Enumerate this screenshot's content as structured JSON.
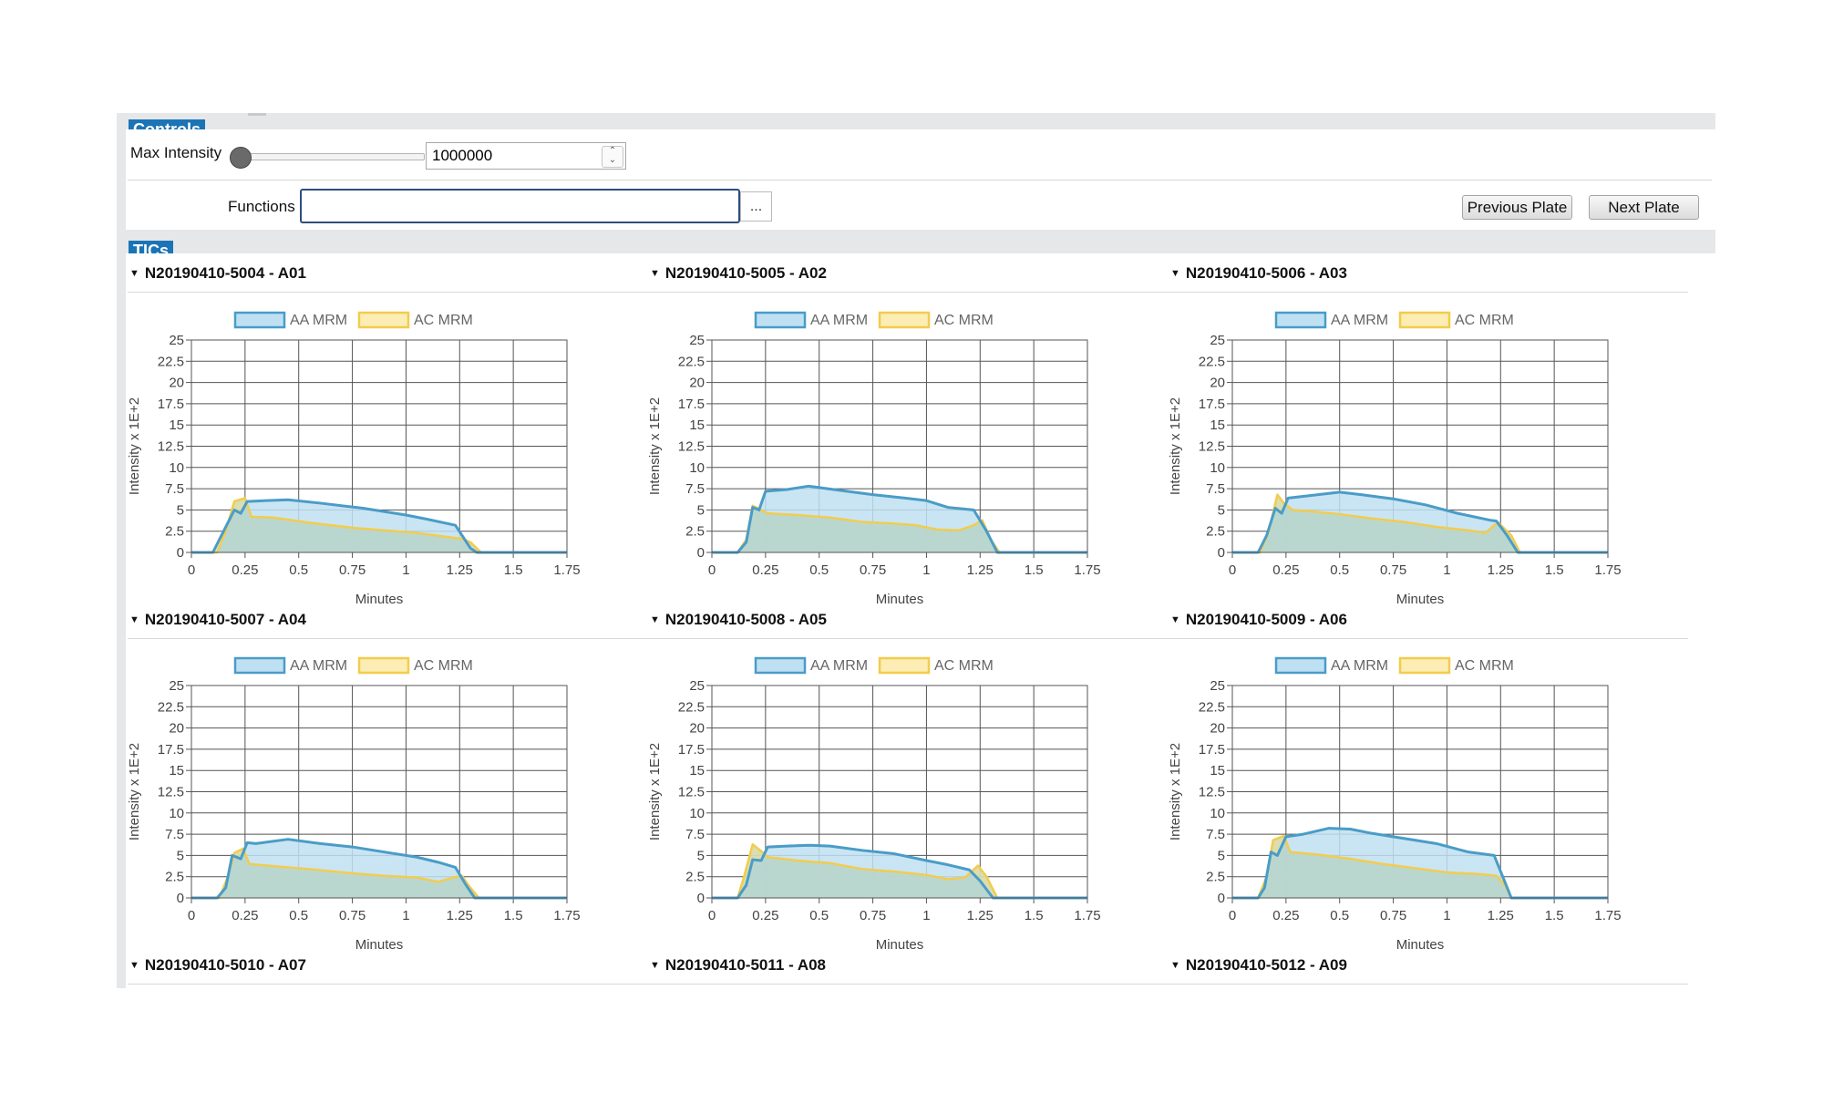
{
  "controls": {
    "title": "Controls",
    "max_intensity_label": "Max Intensity",
    "max_intensity_value": "1000000",
    "functions_label": "Functions",
    "functions_value": "",
    "browse_label": "...",
    "previous_plate_label": "Previous Plate",
    "next_plate_label": "Next Plate",
    "spin_up_icon": "chevron-up-icon",
    "spin_down_icon": "chevron-down-icon"
  },
  "tics": {
    "title": "TICs",
    "collapse_icon": "caret-down-icon",
    "headers": [
      "N20190410-5004 - A01",
      "N20190410-5005 - A02",
      "N20190410-5006 - A03",
      "N20190410-5007 - A04",
      "N20190410-5008 - A05",
      "N20190410-5009 - A06",
      "N20190410-5010 - A07",
      "N20190410-5011 - A08",
      "N20190410-5012 - A09"
    ]
  },
  "chart_data": [
    {
      "type": "area",
      "title": "N20190410-5004 - A01",
      "xlabel": "Minutes",
      "ylabel": "Intensity x 1E+2",
      "xlim": [
        0,
        1.75
      ],
      "ylim": [
        0,
        25
      ],
      "x_ticks": [
        "0",
        "0.25",
        "0.5",
        "0.75",
        "1",
        "1.25",
        "1.5",
        "1.75"
      ],
      "y_ticks": [
        "0",
        "2.5",
        "5",
        "7.5",
        "10",
        "12.5",
        "15",
        "17.5",
        "20",
        "22.5",
        "25"
      ],
      "grid": true,
      "legend": "top",
      "series": [
        {
          "name": "AA MRM",
          "color": "#4a9cc7",
          "fill": "#bfe0f2",
          "points": [
            [
              0,
              0
            ],
            [
              0.1,
              0
            ],
            [
              0.15,
              2.5
            ],
            [
              0.2,
              5
            ],
            [
              0.23,
              4.6
            ],
            [
              0.26,
              6
            ],
            [
              0.35,
              6.1
            ],
            [
              0.45,
              6.2
            ],
            [
              0.6,
              5.8
            ],
            [
              0.8,
              5.2
            ],
            [
              1.0,
              4.4
            ],
            [
              1.1,
              3.9
            ],
            [
              1.23,
              3.2
            ],
            [
              1.3,
              0.5
            ],
            [
              1.33,
              0
            ],
            [
              1.75,
              0
            ]
          ]
        },
        {
          "name": "AC MRM",
          "color": "#f2cc4e",
          "fill": "#fbedb3",
          "points": [
            [
              0,
              0
            ],
            [
              0.12,
              0
            ],
            [
              0.16,
              2.5
            ],
            [
              0.2,
              6
            ],
            [
              0.25,
              6.4
            ],
            [
              0.28,
              4.2
            ],
            [
              0.38,
              4.1
            ],
            [
              0.55,
              3.5
            ],
            [
              0.75,
              2.9
            ],
            [
              0.9,
              2.6
            ],
            [
              1.05,
              2.3
            ],
            [
              1.2,
              1.8
            ],
            [
              1.26,
              1.6
            ],
            [
              1.3,
              1.2
            ],
            [
              1.35,
              0
            ],
            [
              1.75,
              0
            ]
          ]
        }
      ]
    },
    {
      "type": "area",
      "title": "N20190410-5005 - A02",
      "xlabel": "Minutes",
      "ylabel": "Intensity x 1E+2",
      "xlim": [
        0,
        1.75
      ],
      "ylim": [
        0,
        25
      ],
      "x_ticks": [
        "0",
        "0.25",
        "0.5",
        "0.75",
        "1",
        "1.25",
        "1.5",
        "1.75"
      ],
      "y_ticks": [
        "0",
        "2.5",
        "5",
        "7.5",
        "10",
        "12.5",
        "15",
        "17.5",
        "20",
        "22.5",
        "25"
      ],
      "grid": true,
      "legend": "top",
      "series": [
        {
          "name": "AA MRM",
          "color": "#4a9cc7",
          "fill": "#bfe0f2",
          "points": [
            [
              0,
              0
            ],
            [
              0.12,
              0
            ],
            [
              0.16,
              1.2
            ],
            [
              0.19,
              5.3
            ],
            [
              0.22,
              5
            ],
            [
              0.25,
              7.2
            ],
            [
              0.35,
              7.4
            ],
            [
              0.45,
              7.8
            ],
            [
              0.6,
              7.3
            ],
            [
              0.75,
              6.8
            ],
            [
              0.9,
              6.4
            ],
            [
              1.0,
              6.1
            ],
            [
              1.1,
              5.3
            ],
            [
              1.22,
              5
            ],
            [
              1.28,
              2.5
            ],
            [
              1.33,
              0
            ],
            [
              1.75,
              0
            ]
          ]
        },
        {
          "name": "AC MRM",
          "color": "#f2cc4e",
          "fill": "#fbedb3",
          "points": [
            [
              0,
              0
            ],
            [
              0.12,
              0
            ],
            [
              0.16,
              1.5
            ],
            [
              0.19,
              5.5
            ],
            [
              0.23,
              5
            ],
            [
              0.26,
              4.6
            ],
            [
              0.4,
              4.4
            ],
            [
              0.55,
              4.1
            ],
            [
              0.7,
              3.6
            ],
            [
              0.85,
              3.4
            ],
            [
              0.95,
              3.2
            ],
            [
              1.05,
              2.7
            ],
            [
              1.15,
              2.6
            ],
            [
              1.22,
              3.2
            ],
            [
              1.26,
              3.8
            ],
            [
              1.3,
              1.5
            ],
            [
              1.34,
              0
            ],
            [
              1.75,
              0
            ]
          ]
        }
      ]
    },
    {
      "type": "area",
      "title": "N20190410-5006 - A03",
      "xlabel": "Minutes",
      "ylabel": "Intensity x 1E+2",
      "xlim": [
        0,
        1.75
      ],
      "ylim": [
        0,
        25
      ],
      "x_ticks": [
        "0",
        "0.25",
        "0.5",
        "0.75",
        "1",
        "1.25",
        "1.5",
        "1.75"
      ],
      "y_ticks": [
        "0",
        "2.5",
        "5",
        "7.5",
        "10",
        "12.5",
        "15",
        "17.5",
        "20",
        "22.5",
        "25"
      ],
      "grid": true,
      "legend": "top",
      "series": [
        {
          "name": "AA MRM",
          "color": "#4a9cc7",
          "fill": "#bfe0f2",
          "points": [
            [
              0,
              0
            ],
            [
              0.12,
              0
            ],
            [
              0.16,
              2
            ],
            [
              0.2,
              5.2
            ],
            [
              0.23,
              4.6
            ],
            [
              0.26,
              6.4
            ],
            [
              0.33,
              6.6
            ],
            [
              0.4,
              6.8
            ],
            [
              0.5,
              7.1
            ],
            [
              0.6,
              6.8
            ],
            [
              0.75,
              6.3
            ],
            [
              0.9,
              5.6
            ],
            [
              1.05,
              4.6
            ],
            [
              1.2,
              3.8
            ],
            [
              1.23,
              3.7
            ],
            [
              1.28,
              2
            ],
            [
              1.33,
              0
            ],
            [
              1.75,
              0
            ]
          ]
        },
        {
          "name": "AC MRM",
          "color": "#f2cc4e",
          "fill": "#fbedb3",
          "points": [
            [
              0,
              0
            ],
            [
              0.13,
              0
            ],
            [
              0.17,
              2.5
            ],
            [
              0.21,
              6.8
            ],
            [
              0.24,
              5.8
            ],
            [
              0.28,
              5
            ],
            [
              0.38,
              4.8
            ],
            [
              0.5,
              4.5
            ],
            [
              0.65,
              4
            ],
            [
              0.8,
              3.6
            ],
            [
              0.95,
              3
            ],
            [
              1.1,
              2.6
            ],
            [
              1.18,
              2.3
            ],
            [
              1.22,
              3.2
            ],
            [
              1.24,
              3.5
            ],
            [
              1.3,
              2
            ],
            [
              1.34,
              0
            ],
            [
              1.75,
              0
            ]
          ]
        }
      ]
    },
    {
      "type": "area",
      "title": "N20190410-5007 - A04",
      "xlabel": "Minutes",
      "ylabel": "Intensity x 1E+2",
      "xlim": [
        0,
        1.75
      ],
      "ylim": [
        0,
        25
      ],
      "x_ticks": [
        "0",
        "0.25",
        "0.5",
        "0.75",
        "1",
        "1.25",
        "1.5",
        "1.75"
      ],
      "y_ticks": [
        "0",
        "2.5",
        "5",
        "7.5",
        "10",
        "12.5",
        "15",
        "17.5",
        "20",
        "22.5",
        "25"
      ],
      "grid": true,
      "legend": "top",
      "series": [
        {
          "name": "AA MRM",
          "color": "#4a9cc7",
          "fill": "#bfe0f2",
          "points": [
            [
              0,
              0
            ],
            [
              0.12,
              0
            ],
            [
              0.16,
              1.2
            ],
            [
              0.19,
              5
            ],
            [
              0.23,
              4.6
            ],
            [
              0.26,
              6.5
            ],
            [
              0.3,
              6.4
            ],
            [
              0.45,
              6.9
            ],
            [
              0.6,
              6.4
            ],
            [
              0.75,
              6
            ],
            [
              0.9,
              5.4
            ],
            [
              1.05,
              4.8
            ],
            [
              1.15,
              4.2
            ],
            [
              1.23,
              3.6
            ],
            [
              1.28,
              1.5
            ],
            [
              1.32,
              0
            ],
            [
              1.75,
              0
            ]
          ]
        },
        {
          "name": "AC MRM",
          "color": "#f2cc4e",
          "fill": "#fbedb3",
          "points": [
            [
              0,
              0
            ],
            [
              0.13,
              0
            ],
            [
              0.17,
              2.5
            ],
            [
              0.2,
              5.3
            ],
            [
              0.24,
              5.8
            ],
            [
              0.27,
              4
            ],
            [
              0.4,
              3.7
            ],
            [
              0.55,
              3.4
            ],
            [
              0.75,
              2.9
            ],
            [
              0.9,
              2.6
            ],
            [
              1.05,
              2.4
            ],
            [
              1.15,
              1.9
            ],
            [
              1.22,
              2.4
            ],
            [
              1.26,
              2.6
            ],
            [
              1.3,
              1.2
            ],
            [
              1.34,
              0
            ],
            [
              1.75,
              0
            ]
          ]
        }
      ]
    },
    {
      "type": "area",
      "title": "N20190410-5008 - A05",
      "xlabel": "Minutes",
      "ylabel": "Intensity x 1E+2",
      "xlim": [
        0,
        1.75
      ],
      "ylim": [
        0,
        25
      ],
      "x_ticks": [
        "0",
        "0.25",
        "0.5",
        "0.75",
        "1",
        "1.25",
        "1.5",
        "1.75"
      ],
      "y_ticks": [
        "0",
        "2.5",
        "5",
        "7.5",
        "10",
        "12.5",
        "15",
        "17.5",
        "20",
        "22.5",
        "25"
      ],
      "grid": true,
      "legend": "top",
      "series": [
        {
          "name": "AA MRM",
          "color": "#4a9cc7",
          "fill": "#bfe0f2",
          "points": [
            [
              0,
              0
            ],
            [
              0.12,
              0
            ],
            [
              0.16,
              1.5
            ],
            [
              0.19,
              4.5
            ],
            [
              0.23,
              4.4
            ],
            [
              0.26,
              6
            ],
            [
              0.35,
              6.1
            ],
            [
              0.45,
              6.2
            ],
            [
              0.55,
              6.1
            ],
            [
              0.7,
              5.6
            ],
            [
              0.85,
              5.2
            ],
            [
              1.0,
              4.4
            ],
            [
              1.1,
              3.9
            ],
            [
              1.2,
              3.3
            ],
            [
              1.25,
              2
            ],
            [
              1.31,
              0
            ],
            [
              1.75,
              0
            ]
          ]
        },
        {
          "name": "AC MRM",
          "color": "#f2cc4e",
          "fill": "#fbedb3",
          "points": [
            [
              0,
              0
            ],
            [
              0.12,
              0
            ],
            [
              0.15,
              2.5
            ],
            [
              0.19,
              6.3
            ],
            [
              0.23,
              5.5
            ],
            [
              0.26,
              4.8
            ],
            [
              0.4,
              4.4
            ],
            [
              0.55,
              4.1
            ],
            [
              0.7,
              3.4
            ],
            [
              0.85,
              3.1
            ],
            [
              1.0,
              2.7
            ],
            [
              1.1,
              2.2
            ],
            [
              1.18,
              2.4
            ],
            [
              1.24,
              3.8
            ],
            [
              1.28,
              2.5
            ],
            [
              1.33,
              0
            ],
            [
              1.75,
              0
            ]
          ]
        }
      ]
    },
    {
      "type": "area",
      "title": "N20190410-5009 - A06",
      "xlabel": "Minutes",
      "ylabel": "Intensity x 1E+2",
      "xlim": [
        0,
        1.75
      ],
      "ylim": [
        0,
        25
      ],
      "x_ticks": [
        "0",
        "0.25",
        "0.5",
        "0.75",
        "1",
        "1.25",
        "1.5",
        "1.75"
      ],
      "y_ticks": [
        "0",
        "2.5",
        "5",
        "7.5",
        "10",
        "12.5",
        "15",
        "17.5",
        "20",
        "22.5",
        "25"
      ],
      "grid": true,
      "legend": "top",
      "series": [
        {
          "name": "AA MRM",
          "color": "#4a9cc7",
          "fill": "#bfe0f2",
          "points": [
            [
              0,
              0
            ],
            [
              0.12,
              0
            ],
            [
              0.15,
              1.2
            ],
            [
              0.18,
              5.4
            ],
            [
              0.21,
              5
            ],
            [
              0.25,
              7.2
            ],
            [
              0.33,
              7.5
            ],
            [
              0.45,
              8.2
            ],
            [
              0.55,
              8.1
            ],
            [
              0.65,
              7.6
            ],
            [
              0.8,
              7
            ],
            [
              0.95,
              6.4
            ],
            [
              1.1,
              5.4
            ],
            [
              1.22,
              5
            ],
            [
              1.26,
              2.5
            ],
            [
              1.3,
              0
            ],
            [
              1.75,
              0
            ]
          ]
        },
        {
          "name": "AC MRM",
          "color": "#f2cc4e",
          "fill": "#fbedb3",
          "points": [
            [
              0,
              0
            ],
            [
              0.12,
              0
            ],
            [
              0.16,
              2.5
            ],
            [
              0.19,
              6.8
            ],
            [
              0.24,
              7.3
            ],
            [
              0.27,
              5.4
            ],
            [
              0.4,
              5.1
            ],
            [
              0.55,
              4.6
            ],
            [
              0.7,
              4
            ],
            [
              0.85,
              3.5
            ],
            [
              1.0,
              3
            ],
            [
              1.15,
              2.8
            ],
            [
              1.23,
              2.6
            ],
            [
              1.27,
              1.5
            ],
            [
              1.3,
              0
            ],
            [
              1.75,
              0
            ]
          ]
        }
      ]
    }
  ]
}
